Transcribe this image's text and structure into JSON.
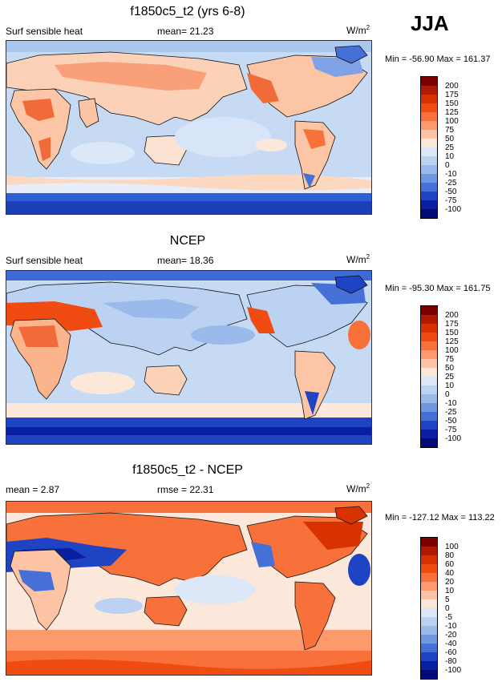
{
  "season": "JJA",
  "panels": [
    {
      "title": "f1850c5_t2 (yrs 6-8)",
      "left_label": "Surf sensible heat",
      "center_label": "mean=  21.23",
      "units": "W/m",
      "units_sup": "2",
      "minmax": "Min = -56.90 Max = 161.37",
      "colorbar_labels": [
        "200",
        "175",
        "150",
        "125",
        "100",
        "75",
        "50",
        "25",
        "10",
        "0",
        "-10",
        "-25",
        "-50",
        "-75",
        "-100"
      ]
    },
    {
      "title": "NCEP",
      "left_label": "Surf sensible heat",
      "center_label": "mean=  18.36",
      "units": "W/m",
      "units_sup": "2",
      "minmax": "Min = -95.30 Max = 161.75",
      "colorbar_labels": [
        "200",
        "175",
        "150",
        "125",
        "100",
        "75",
        "50",
        "25",
        "10",
        "0",
        "-10",
        "-25",
        "-50",
        "-75",
        "-100"
      ]
    },
    {
      "title": "f1850c5_t2 - NCEP",
      "left_label": "mean =   2.87",
      "center_label": "rmse =  22.31",
      "units": "W/m",
      "units_sup": "2",
      "minmax": "Min = -127.12 Max = 113.22",
      "colorbar_labels": [
        "100",
        "80",
        "60",
        "40",
        "20",
        "10",
        "5",
        "0",
        "-5",
        "-10",
        "-20",
        "-40",
        "-60",
        "-80",
        "-100"
      ]
    }
  ],
  "colorbar_colors": [
    "#7a0000",
    "#b01a00",
    "#d83200",
    "#f04c12",
    "#f8703a",
    "#fc9a6e",
    "#fcc4a4",
    "#fbe8da",
    "#dce8f8",
    "#bcd2f2",
    "#9bbaec",
    "#6f98e2",
    "#4470d8",
    "#1e44c4",
    "#0a1fa0",
    "#000a78"
  ]
}
